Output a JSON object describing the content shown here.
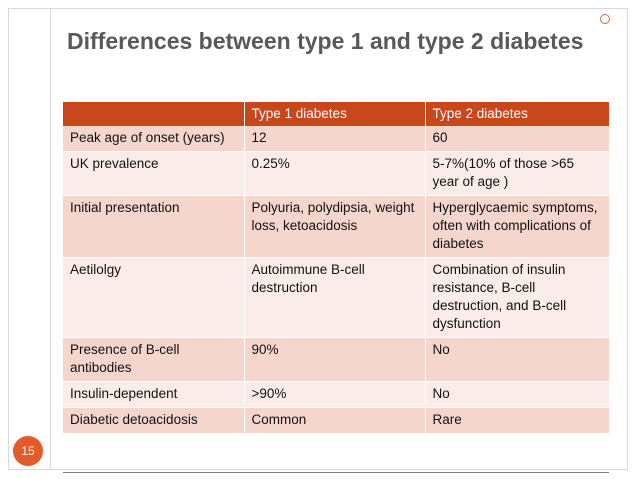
{
  "slide": {
    "title": "Differences between type 1 and type 2 diabetes",
    "number": "15"
  },
  "table": {
    "headers": [
      "",
      "Type 1 diabetes",
      "Type 2 diabetes"
    ],
    "rows": [
      [
        "Peak age of onset (years)",
        "12",
        "60"
      ],
      [
        "UK prevalence",
        "0.25%",
        "5-7%(10% of those >65 year of age )"
      ],
      [
        "Initial presentation",
        "Polyuria, polydipsia, weight loss, ketoacidosis",
        "Hyperglycaemic symptoms, often with complications of diabetes"
      ],
      [
        "Aetilolgy",
        "Autoimmune B-cell destruction",
        "Combination of insulin resistance, B-cell destruction, and B-cell dysfunction"
      ],
      [
        "Presence of B-cell antibodies",
        "90%",
        "No"
      ],
      [
        "Insulin-dependent",
        ">90%",
        "No"
      ],
      [
        "Diabetic detoacidosis",
        "Common",
        "Rare"
      ]
    ]
  },
  "colors": {
    "header_bg": "#c9471d",
    "row_odd": "#f5d6cc",
    "row_even": "#fbecea",
    "title": "#595959",
    "badge": "#e55a2b"
  }
}
